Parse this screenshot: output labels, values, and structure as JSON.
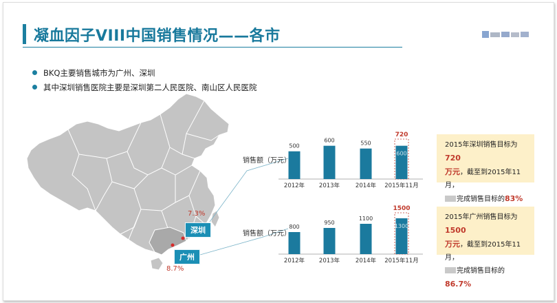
{
  "title": "凝血因子VIII中国销售情况——各市",
  "bullets": [
    "BKQ主要销售城市为广州、深圳",
    "其中深圳销售医院主要是深圳第二人民医院、南山区人民医院"
  ],
  "map": {
    "shenzhen_label": "深圳",
    "guangzhou_label": "广州",
    "shenzhen_pct": "7.3%",
    "guangzhou_pct": "8.7%"
  },
  "colors": {
    "accent": "#1b7fa0",
    "bar": "#1b7a9e",
    "target": "#c0392b",
    "note_bg": "#fdf0c9",
    "map": "#c4c4c4"
  },
  "chart_data": [
    {
      "type": "bar",
      "ylabel": "销售额（万元）",
      "categories": [
        "2012年",
        "2013年",
        "2014年",
        "2015年11月"
      ],
      "values": [
        500,
        600,
        550,
        600
      ],
      "target": {
        "category": "2015年11月",
        "value": 720,
        "label": "720"
      },
      "value_labels": [
        "500",
        "600",
        "550",
        "600"
      ]
    },
    {
      "type": "bar",
      "ylabel": "销售额（万元）",
      "categories": [
        "2012年",
        "2013年",
        "2014年",
        "2015年11月"
      ],
      "values": [
        800,
        950,
        1100,
        1300
      ],
      "target": {
        "category": "2015年11月",
        "value": 1500,
        "label": "1500"
      },
      "value_labels": [
        "800",
        "950",
        "1100",
        "1300"
      ]
    }
  ],
  "notes": [
    {
      "line1_pre": "2015年深圳销售目标为",
      "line1_hl": "720",
      "line2_hl": "万元",
      "line2_post": "，截至到2015年11月，",
      "line3_pre": "完成销售目标的",
      "line3_hl": "83%"
    },
    {
      "line1_pre": "2015年广州销售目标为",
      "line1_hl": "1500",
      "line2_hl": "万元",
      "line2_post": "，截至到2015年11月，",
      "line3_pre": "完成销售目标的",
      "line3_hl": "86.7%"
    }
  ]
}
